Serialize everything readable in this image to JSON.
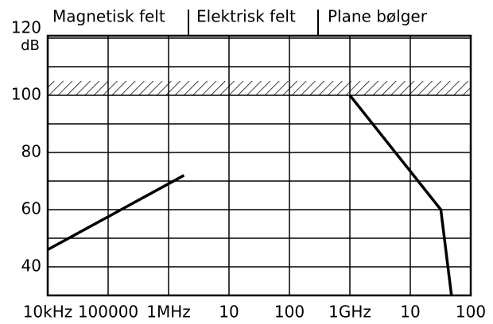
{
  "chart_data": {
    "type": "line",
    "annotations": [
      "Magnetisk felt",
      "Elektrisk felt",
      "Plane bølger"
    ],
    "ylabel": "dB",
    "xscale": "log",
    "xlim": [
      10000,
      100000000000
    ],
    "xticks": [
      {
        "value": 10000,
        "label": "10kHz"
      },
      100000,
      {
        "value": 1000000,
        "label": "1MHz"
      },
      {
        "value": 10000000,
        "label": "10"
      },
      {
        "value": 100000000,
        "label": "100"
      },
      {
        "value": 1000000000,
        "label": "1GHz"
      },
      {
        "value": 10000000000,
        "label": "10"
      },
      {
        "value": 100000000000,
        "label": "100"
      }
    ],
    "ylim": [
      30,
      120
    ],
    "yticks": [
      40,
      60,
      80,
      100,
      120
    ],
    "yminor": [
      50,
      70,
      90,
      110
    ],
    "grid": true,
    "hatch_band": [
      100,
      105
    ],
    "color": "#000000",
    "series": [
      {
        "x": [
          10000,
          1800000
        ],
        "values": [
          46,
          72
        ]
      },
      {
        "x": [
          1000000000,
          32000000000,
          48000000000
        ],
        "values": [
          100,
          60,
          30
        ]
      }
    ]
  }
}
